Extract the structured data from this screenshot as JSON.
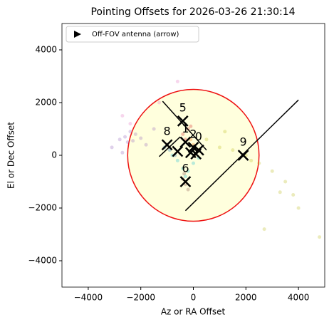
{
  "chart_data": {
    "type": "scatter",
    "title": "Pointing Offsets for 2026-03-26 21:30:14",
    "x_label": "Az or RA Offset",
    "y_label": "El or Dec Offset",
    "xlim": [
      -5000,
      5000
    ],
    "ylim": [
      -5000,
      5000
    ],
    "xticks": [
      {
        "value": -4000,
        "label": "−4000"
      },
      {
        "value": -2000,
        "label": "−2000"
      },
      0,
      2000,
      4000
    ],
    "yticks": [
      {
        "value": -4000,
        "label": "−4000"
      },
      {
        "value": -2000,
        "label": "−2000"
      },
      0,
      2000,
      4000
    ],
    "legend": {
      "label": "Off-FOV antenna (arrow)",
      "position": "upper left"
    },
    "fov_circle": {
      "radius": 2500,
      "color": "#ee1111",
      "fill": "#ffffdd"
    },
    "series": [
      {
        "color": "#9467bd",
        "x": [
          -2800,
          -2600,
          -2500,
          -2300,
          -2200,
          -2000,
          -3100,
          -1800,
          -2400,
          -1500,
          -2700
        ],
        "y": [
          600,
          700,
          500,
          550,
          800,
          650,
          300,
          400,
          900,
          1000,
          100
        ]
      },
      {
        "color": "#e377c2",
        "x": [
          -2700,
          -2400,
          -1300,
          -600
        ],
        "y": [
          1500,
          1200,
          2000,
          2800
        ]
      },
      {
        "color": "#bcbd22",
        "x": [
          500,
          1000,
          1500,
          2000,
          2500,
          3000,
          3500,
          3800,
          4000,
          3300,
          2200,
          1200,
          4800,
          2700
        ],
        "y": [
          600,
          300,
          200,
          0,
          -300,
          -600,
          -1000,
          -1500,
          -2000,
          -1400,
          -200,
          900,
          -3100,
          -2800
        ]
      },
      {
        "color": "#17becf",
        "x": [
          -600,
          -400,
          -200,
          0,
          -800,
          200,
          -300,
          -100
        ],
        "y": [
          -200,
          -500,
          -600,
          -300,
          0,
          -100,
          -800,
          100
        ]
      },
      {
        "color": "#8c564b",
        "x": [
          -400,
          -300,
          -200,
          -350
        ],
        "y": [
          -900,
          -1100,
          -1300,
          -700
        ]
      },
      {
        "color": "#d62728",
        "x": [
          -400,
          -200,
          -300,
          -100
        ],
        "y": [
          800,
          1000,
          600,
          1100
        ]
      },
      {
        "color": "#1f77b4",
        "x": [
          -900,
          -1100,
          -700
        ],
        "y": [
          200,
          300,
          0
        ]
      },
      {
        "color": "#ff7f0e",
        "x": [
          0,
          200,
          -100
        ],
        "y": [
          400,
          200,
          600
        ]
      }
    ],
    "antennas": {
      "names": [
        "5",
        "8",
        "6",
        "9",
        "1",
        "2",
        "0",
        null,
        null,
        null
      ],
      "x": [
        -400,
        -1000,
        -300,
        1900,
        -300,
        0,
        200,
        -600,
        100,
        -100
      ],
      "y": [
        1300,
        400,
        -1000,
        0,
        500,
        300,
        200,
        150,
        50,
        100
      ]
    },
    "arrows": [
      {
        "x": [
          -300,
          4000
        ],
        "y": [
          -2100,
          2100
        ]
      },
      {
        "x": [
          -1170,
          500
        ],
        "y": [
          2050,
          200
        ]
      },
      {
        "x": [
          -1300,
          -500
        ],
        "y": [
          -50,
          700
        ]
      }
    ]
  }
}
